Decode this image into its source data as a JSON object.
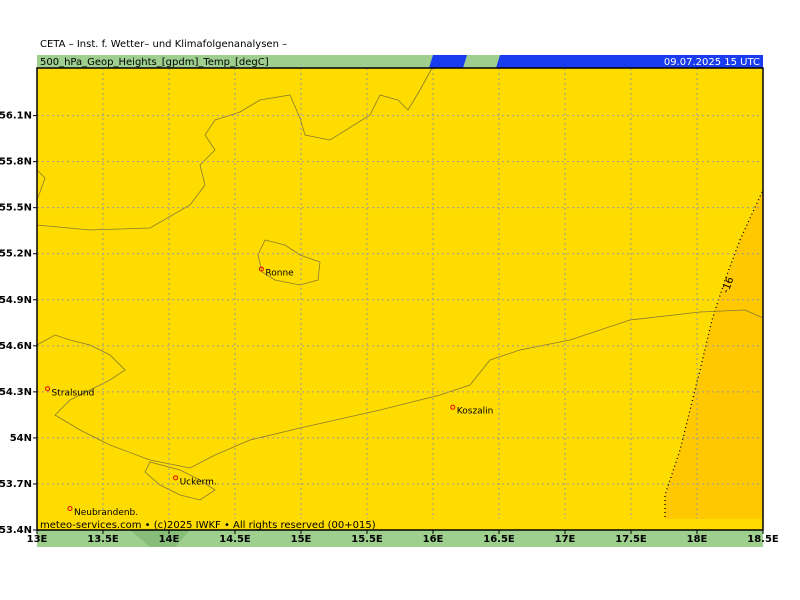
{
  "header": {
    "title": "CETA – Inst. f. Wetter– und Klimafolgenanalysen –",
    "field": "500_hPa_Geop_Heights_[gpdm]_Temp_[degC]",
    "date": "09.07.2025 15 UTC"
  },
  "footer": "meteo-services.com • (c)2025 IWKF • All rights reserved (00+015)",
  "map": {
    "xlim": [
      13,
      18.5
    ],
    "ylim": [
      53.4,
      56.41
    ],
    "xticks": [
      {
        "value": 13,
        "label": "13E"
      },
      {
        "value": 13.5,
        "label": "13.5E"
      },
      {
        "value": 14,
        "label": "14E"
      },
      {
        "value": 14.5,
        "label": "14.5E"
      },
      {
        "value": 15,
        "label": "15E"
      },
      {
        "value": 15.5,
        "label": "15.5E"
      },
      {
        "value": 16,
        "label": "16E"
      },
      {
        "value": 16.5,
        "label": "16.5E"
      },
      {
        "value": 17,
        "label": "17E"
      },
      {
        "value": 17.5,
        "label": "17.5E"
      },
      {
        "value": 18,
        "label": "18E"
      },
      {
        "value": 18.5,
        "label": "18.5E"
      }
    ],
    "yticks": [
      {
        "value": 53.4,
        "label": "53.4N"
      },
      {
        "value": 53.7,
        "label": "53.7N"
      },
      {
        "value": 54,
        "label": "54N"
      },
      {
        "value": 54.3,
        "label": "54.3N"
      },
      {
        "value": 54.6,
        "label": "54.6N"
      },
      {
        "value": 54.9,
        "label": "54.9N"
      },
      {
        "value": 55.2,
        "label": "55.2N"
      },
      {
        "value": 55.5,
        "label": "55.5N"
      },
      {
        "value": 55.8,
        "label": "55.8N"
      },
      {
        "value": 56.1,
        "label": "56.1N"
      }
    ],
    "grid": true,
    "cities": [
      {
        "name": "Ronne",
        "lon": 14.7,
        "lat": 55.1
      },
      {
        "name": "Stralsund",
        "lon": 13.08,
        "lat": 54.32
      },
      {
        "name": "Koszalin",
        "lon": 16.15,
        "lat": 54.2
      },
      {
        "name": "Uckerm.",
        "lon": 14.05,
        "lat": 53.74
      },
      {
        "name": "Neubrandenb.",
        "lon": 13.25,
        "lat": 53.54
      }
    ],
    "contour": {
      "label": "-16"
    }
  }
}
